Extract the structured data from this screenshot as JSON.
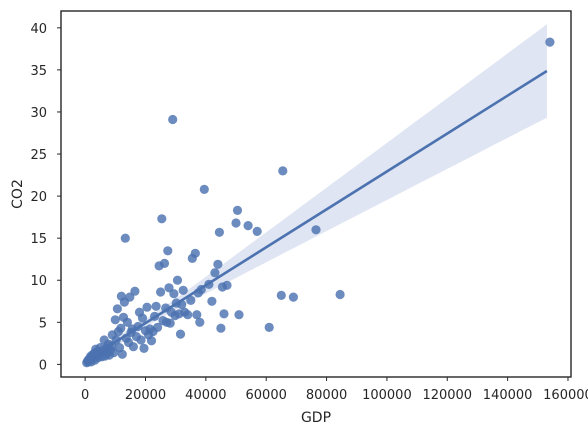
{
  "chart_data": {
    "type": "scatter",
    "title": "",
    "xlabel": "GDP",
    "ylabel": "CO2",
    "xlim": [
      -8000,
      161000
    ],
    "ylim": [
      -1.5,
      42
    ],
    "x_ticks": [
      0,
      20000,
      40000,
      60000,
      80000,
      100000,
      120000,
      140000,
      160000
    ],
    "x_tick_labels": [
      "0",
      "20000",
      "40000",
      "60000",
      "80000",
      "100000",
      "120000",
      "140000",
      "160000"
    ],
    "y_ticks": [
      0,
      5,
      10,
      15,
      20,
      25,
      30,
      35,
      40
    ],
    "y_tick_labels": [
      "0",
      "5",
      "10",
      "15",
      "20",
      "25",
      "30",
      "35",
      "40"
    ],
    "grid": false,
    "colors": {
      "points": "#4c72b0",
      "line": "#4c72b0",
      "band": "#dfe5f2",
      "axes": "#262626"
    },
    "regression": {
      "x_range": [
        300,
        153000
      ],
      "intercept": 0.4,
      "slope": 0.0002253,
      "ci_upper_at_max": 39.9,
      "ci_lower_at_max": 28.8,
      "ci_halfwidth_at_mean": 0.45,
      "x_mean": 18000
    },
    "points": [
      [
        500,
        0.2
      ],
      [
        800,
        0.4
      ],
      [
        1000,
        0.3
      ],
      [
        1200,
        0.6
      ],
      [
        1500,
        0.5
      ],
      [
        1800,
        0.9
      ],
      [
        2000,
        0.3
      ],
      [
        2300,
        1.1
      ],
      [
        2600,
        0.7
      ],
      [
        3000,
        1.3
      ],
      [
        3200,
        0.5
      ],
      [
        3500,
        1.8
      ],
      [
        3800,
        1.0
      ],
      [
        4000,
        1.5
      ],
      [
        4300,
        0.8
      ],
      [
        4600,
        1.2
      ],
      [
        5000,
        2.0
      ],
      [
        5200,
        1.4
      ],
      [
        5600,
        0.9
      ],
      [
        6000,
        1.6
      ],
      [
        6300,
        2.9
      ],
      [
        6600,
        1.0
      ],
      [
        7000,
        1.9
      ],
      [
        7300,
        1.3
      ],
      [
        7700,
        2.4
      ],
      [
        8000,
        1.1
      ],
      [
        8400,
        1.7
      ],
      [
        8800,
        2.2
      ],
      [
        9000,
        3.5
      ],
      [
        9500,
        1.4
      ],
      [
        10000,
        5.3
      ],
      [
        10300,
        2.9
      ],
      [
        10700,
        6.6
      ],
      [
        11000,
        3.9
      ],
      [
        11400,
        2.0
      ],
      [
        11800,
        4.3
      ],
      [
        12000,
        8.1
      ],
      [
        12300,
        1.2
      ],
      [
        12700,
        5.6
      ],
      [
        13000,
        7.4
      ],
      [
        13300,
        15.0
      ],
      [
        13600,
        3.1
      ],
      [
        14000,
        5.0
      ],
      [
        14400,
        2.6
      ],
      [
        14800,
        8.0
      ],
      [
        15200,
        3.8
      ],
      [
        15600,
        4.2
      ],
      [
        16000,
        2.1
      ],
      [
        16500,
        8.7
      ],
      [
        17000,
        3.3
      ],
      [
        17500,
        4.5
      ],
      [
        18000,
        6.2
      ],
      [
        18500,
        2.9
      ],
      [
        19000,
        5.5
      ],
      [
        19500,
        1.9
      ],
      [
        20000,
        4.0
      ],
      [
        20500,
        6.8
      ],
      [
        21000,
        3.5
      ],
      [
        21500,
        4.2
      ],
      [
        22000,
        2.8
      ],
      [
        22500,
        3.9
      ],
      [
        23000,
        5.7
      ],
      [
        23500,
        6.9
      ],
      [
        24000,
        4.4
      ],
      [
        24500,
        11.7
      ],
      [
        25000,
        8.6
      ],
      [
        25400,
        17.3
      ],
      [
        25800,
        5.2
      ],
      [
        26300,
        12.0
      ],
      [
        26700,
        6.7
      ],
      [
        27000,
        5.0
      ],
      [
        27400,
        13.5
      ],
      [
        27800,
        9.1
      ],
      [
        28200,
        4.9
      ],
      [
        28600,
        6.2
      ],
      [
        29000,
        29.1
      ],
      [
        29400,
        8.4
      ],
      [
        29800,
        5.8
      ],
      [
        30200,
        7.3
      ],
      [
        30600,
        10.0
      ],
      [
        31100,
        6.0
      ],
      [
        31600,
        3.6
      ],
      [
        32000,
        7.1
      ],
      [
        32500,
        8.8
      ],
      [
        33000,
        6.2
      ],
      [
        34000,
        5.9
      ],
      [
        35000,
        7.6
      ],
      [
        35500,
        12.6
      ],
      [
        36500,
        13.2
      ],
      [
        37000,
        5.9
      ],
      [
        37500,
        8.5
      ],
      [
        38000,
        5.0
      ],
      [
        38500,
        8.9
      ],
      [
        39500,
        20.8
      ],
      [
        41000,
        9.5
      ],
      [
        42000,
        7.5
      ],
      [
        43000,
        10.9
      ],
      [
        44000,
        11.9
      ],
      [
        44500,
        15.7
      ],
      [
        45000,
        4.3
      ],
      [
        45500,
        9.2
      ],
      [
        46000,
        6.0
      ],
      [
        47000,
        9.4
      ],
      [
        50000,
        16.8
      ],
      [
        50500,
        18.3
      ],
      [
        51000,
        5.9
      ],
      [
        54000,
        16.5
      ],
      [
        57000,
        15.8
      ],
      [
        61000,
        4.4
      ],
      [
        65000,
        8.2
      ],
      [
        65500,
        23.0
      ],
      [
        69000,
        8.0
      ],
      [
        76500,
        16.0
      ],
      [
        84500,
        8.3
      ],
      [
        154000,
        38.3
      ]
    ]
  }
}
